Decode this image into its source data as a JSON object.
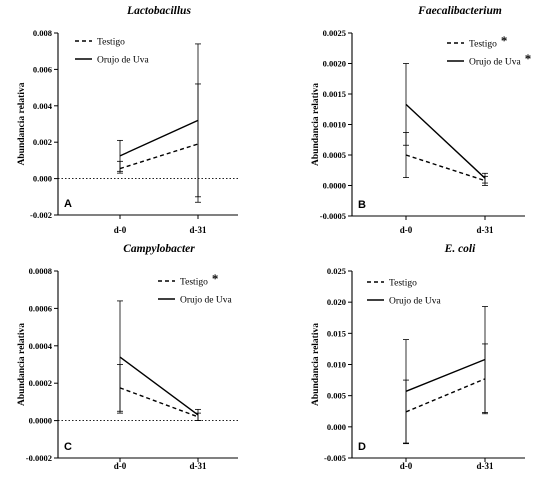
{
  "chart_data": [
    {
      "type": "line",
      "panel": "A",
      "title": "Lactobacillus",
      "ylabel": "Abundancia relativa",
      "categories": [
        "d-0",
        "d-31"
      ],
      "ylim": [
        -0.002,
        0.008
      ],
      "yticks": [
        -0.002,
        0.0,
        0.002,
        0.004,
        0.006,
        0.008
      ],
      "ytick_labels": [
        "-0.002",
        "0.000",
        "0.002",
        "0.004",
        "0.006",
        "0.008"
      ],
      "zero_line": true,
      "legend_position": "top-right",
      "series": [
        {
          "name": "Testigo",
          "style": "dashed",
          "values": [
            0.00055,
            0.0019
          ],
          "err_high": [
            0.00095,
            0.0052
          ],
          "err_low": [
            0.0003,
            -0.0013
          ],
          "asterisk": false
        },
        {
          "name": "Orujo de Uva",
          "style": "solid",
          "values": [
            0.00125,
            0.0032
          ],
          "err_high": [
            0.0021,
            0.0074
          ],
          "err_low": [
            0.0004,
            -0.001
          ],
          "asterisk": false
        }
      ]
    },
    {
      "type": "line",
      "panel": "B",
      "title": "Faecalibacterium",
      "ylabel": "Abundancia relativa",
      "categories": [
        "d-0",
        "d-31"
      ],
      "ylim": [
        -0.0005,
        0.0025
      ],
      "yticks": [
        -0.0005,
        0.0,
        0.0005,
        0.001,
        0.0015,
        0.002,
        0.0025
      ],
      "ytick_labels": [
        "-0.0005",
        "0.0000",
        "0.0005",
        "0.0010",
        "0.0015",
        "0.0020",
        "0.0025"
      ],
      "zero_line": false,
      "legend_position": "top-right",
      "series": [
        {
          "name": "Testigo",
          "style": "dashed",
          "values": [
            0.0005,
            8e-05
          ],
          "err_high": [
            0.00087,
            0.00015
          ],
          "err_low": [
            0.00013,
            0.0
          ],
          "asterisk": true
        },
        {
          "name": "Orujo de Uva",
          "style": "solid",
          "values": [
            0.00133,
            0.00012
          ],
          "err_high": [
            0.002,
            0.0002
          ],
          "err_low": [
            0.00066,
            4e-05
          ],
          "asterisk": true
        }
      ]
    },
    {
      "type": "line",
      "panel": "C",
      "title": "Campylobacter",
      "ylabel": "Abundancia relativa",
      "categories": [
        "d-0",
        "d-31"
      ],
      "ylim": [
        -0.0002,
        0.0008
      ],
      "yticks": [
        -0.0002,
        0.0,
        0.0002,
        0.0004,
        0.0006,
        0.0008
      ],
      "ytick_labels": [
        "-0.0002",
        "0.0000",
        "0.0002",
        "0.0004",
        "0.0006",
        "0.0008"
      ],
      "zero_line": true,
      "legend_position": "top-right",
      "series": [
        {
          "name": "Testigo",
          "style": "dashed",
          "values": [
            0.000175,
            2e-05
          ],
          "err_high": [
            0.0003,
            4e-05
          ],
          "err_low": [
            5e-05,
            0.0
          ],
          "asterisk": true
        },
        {
          "name": "Orujo de Uva",
          "style": "solid",
          "values": [
            0.00034,
            3e-05
          ],
          "err_high": [
            0.00064,
            6e-05
          ],
          "err_low": [
            4e-05,
            0.0
          ],
          "asterisk": false
        }
      ]
    },
    {
      "type": "line",
      "panel": "D",
      "title": "E. coli",
      "ylabel": "Abundancia relativa",
      "categories": [
        "d-0",
        "d-31"
      ],
      "ylim": [
        -0.005,
        0.025
      ],
      "yticks": [
        -0.005,
        0.0,
        0.005,
        0.01,
        0.015,
        0.02,
        0.025
      ],
      "ytick_labels": [
        "-0.005",
        "0.000",
        "0.005",
        "0.010",
        "0.015",
        "0.020",
        "0.025"
      ],
      "zero_line": false,
      "legend_position": "top-left",
      "series": [
        {
          "name": "Testigo",
          "style": "dashed",
          "values": [
            0.0024,
            0.0077
          ],
          "err_high": [
            0.0075,
            0.0133
          ],
          "err_low": [
            -0.0027,
            0.0021
          ],
          "asterisk": false
        },
        {
          "name": "Orujo de Uva",
          "style": "solid",
          "values": [
            0.0057,
            0.0108
          ],
          "err_high": [
            0.014,
            0.0193
          ],
          "err_low": [
            -0.0026,
            0.0023
          ],
          "asterisk": false
        }
      ]
    }
  ]
}
